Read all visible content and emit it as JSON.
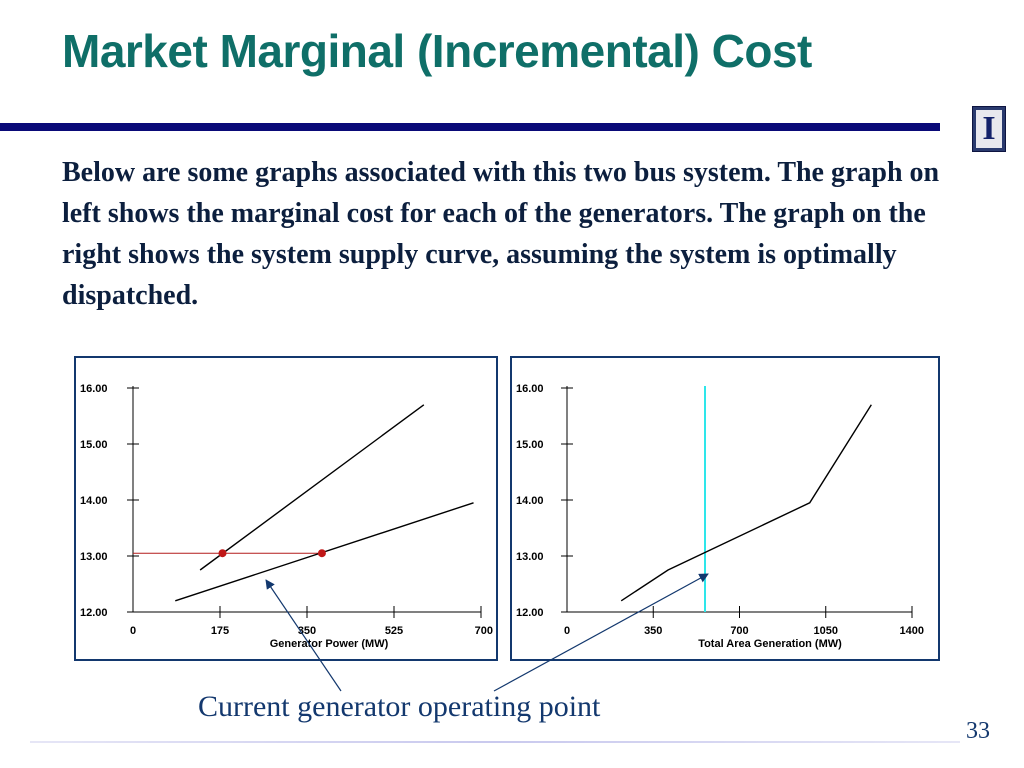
{
  "slide": {
    "title": "Market Marginal (Incremental) Cost",
    "body": "Below are some graphs associated with this two bus system.  The graph on left shows the marginal cost for each of the generators.  The graph on the right shows the system supply curve, assuming the system is optimally dispatched.",
    "caption": "Current generator operating point",
    "page_number": "33",
    "colors": {
      "title": "#0f6f68",
      "rule": "#0a0a78",
      "text": "#0c1f3e",
      "panel_border": "#13386e",
      "operating_line": "#b31b1b",
      "operating_point": "#c01818",
      "supply_marker": "#2ee6ea"
    },
    "logo_icon": "university-block-i-icon"
  },
  "chart_data": [
    {
      "type": "line",
      "title": "",
      "xlabel": "Generator Power (MW)",
      "ylabel": "",
      "xlim": [
        0,
        700
      ],
      "ylim": [
        12,
        16
      ],
      "x_ticks": [
        0,
        175,
        350,
        525,
        700
      ],
      "x_tick_labels": [
        "0",
        "175",
        "350",
        "525",
        "700"
      ],
      "y_ticks": [
        12,
        13,
        14,
        15,
        16
      ],
      "y_tick_labels": [
        "12.00",
        "13.00",
        "14.00",
        "15.00",
        "16.00"
      ],
      "grid": false,
      "series": [
        {
          "points": [
            [
              135,
              12.75
            ],
            [
              585,
              15.7
            ]
          ]
        },
        {
          "points": [
            [
              85,
              12.2
            ],
            [
              685,
              13.95
            ]
          ]
        }
      ],
      "operating_points": [
        [
          180,
          13.05
        ],
        [
          380,
          13.05
        ]
      ],
      "operating_price": 13.05
    },
    {
      "type": "line",
      "title": "",
      "xlabel": "Total Area Generation (MW)",
      "ylabel": "",
      "xlim": [
        0,
        1400
      ],
      "ylim": [
        12,
        16
      ],
      "x_ticks": [
        0,
        350,
        700,
        1050,
        1400
      ],
      "x_tick_labels": [
        "0",
        "350",
        "700",
        "1050",
        "1400"
      ],
      "y_ticks": [
        12,
        13,
        14,
        15,
        16
      ],
      "y_tick_labels": [
        "12.00",
        "13.00",
        "14.00",
        "15.00",
        "16.00"
      ],
      "grid": false,
      "series": [
        {
          "points": [
            [
              220,
              12.2
            ],
            [
              410,
              12.75
            ],
            [
              985,
              13.95
            ],
            [
              1235,
              15.7
            ]
          ]
        }
      ],
      "vertical_marker_x": 560
    }
  ]
}
